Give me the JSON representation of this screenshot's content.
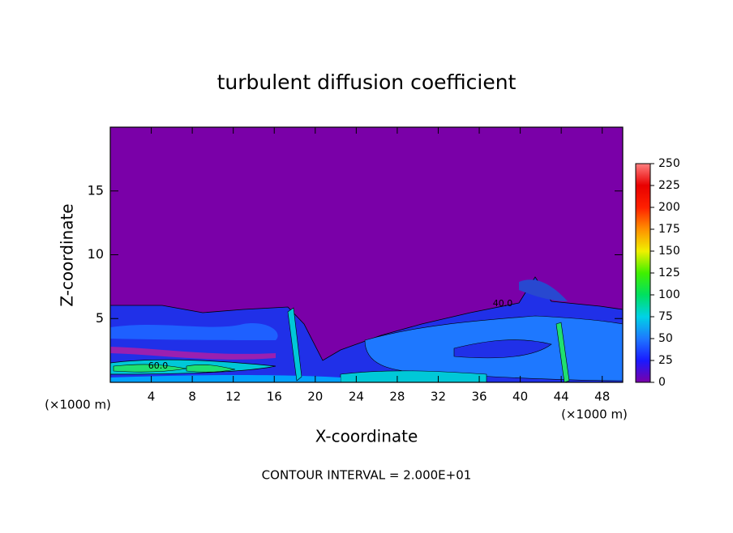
{
  "chart_data": {
    "type": "contour",
    "title": "turbulent diffusion coefficient",
    "x_label": "X-coordinate",
    "y_label": "Z-coordinate",
    "x_unit": "(×1000 m)",
    "x_unit_right": "(×1000 m)",
    "footer": "CONTOUR INTERVAL = 2.000E+01",
    "contour_labels": [
      "60.0",
      "40.0"
    ],
    "xlim": [
      0,
      50
    ],
    "xticks": [
      4,
      8,
      12,
      16,
      20,
      24,
      28,
      32,
      36,
      40,
      44,
      48
    ],
    "ylim": [
      0,
      20
    ],
    "yticks": [
      5,
      10,
      15
    ],
    "colorbar": {
      "lim": [
        0,
        250
      ],
      "ticks": [
        0,
        25,
        50,
        75,
        100,
        125,
        150,
        175,
        200,
        225,
        250
      ],
      "colors": [
        "#7a00a8",
        "#1a1aff",
        "#1e78ff",
        "#00d2e6",
        "#00e060",
        "#40f000",
        "#f0f000",
        "#ff9000",
        "#ff2000",
        "#e80000",
        "#ff8080"
      ]
    }
  }
}
